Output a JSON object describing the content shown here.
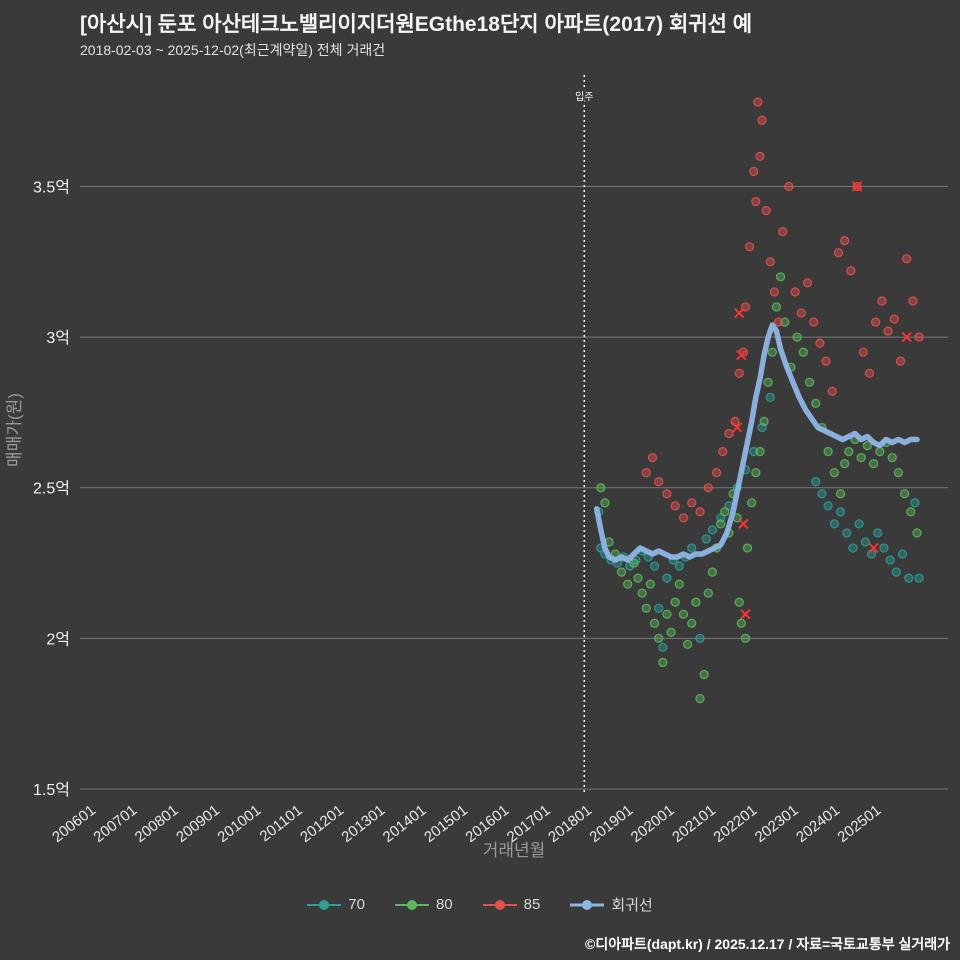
{
  "title": "[아산시] 둔포 아산테크노밸리이지더원EGthe18단지 아파트(2017) 회귀선 예",
  "subtitle": "2018-02-03 ~ 2025-12-02(최근계약일) 전체 거래건",
  "footer": "©디아파트(dapt.kr) / 2025.12.17 / 자료=국토교통부 실거래가",
  "colors": {
    "background": "#3a3a3a",
    "gridline": "#8c8c8c",
    "tick_label": "#e8e8e8",
    "axis_title": "#9a9a9a",
    "annotation_line": "#ffffff",
    "series_70": "#2e9e96",
    "series_80": "#5cb85c",
    "series_85": "#e2514f",
    "series_x": "#ff3333",
    "regression": "#8fb5e6"
  },
  "chart_data": {
    "type": "scatter",
    "title": "[아산시] 둔포 아산테크노밸리이지더원EGthe18단지 아파트(2017) 회귀선 예",
    "xlabel": "거래년월",
    "ylabel": "매매가(원)",
    "xlim": [
      2005.6,
      2026.6
    ],
    "ylim": [
      1.48,
      3.87
    ],
    "grid": "horizontal",
    "legend_position": "bottom-center",
    "x_ticks": [
      {
        "label": "200601",
        "x": 2006
      },
      {
        "label": "200701",
        "x": 2007
      },
      {
        "label": "200801",
        "x": 2008
      },
      {
        "label": "200901",
        "x": 2009
      },
      {
        "label": "201001",
        "x": 2010
      },
      {
        "label": "201101",
        "x": 2011
      },
      {
        "label": "201201",
        "x": 2012
      },
      {
        "label": "201301",
        "x": 2013
      },
      {
        "label": "201401",
        "x": 2014
      },
      {
        "label": "201501",
        "x": 2015
      },
      {
        "label": "201601",
        "x": 2016
      },
      {
        "label": "201701",
        "x": 2017
      },
      {
        "label": "201801",
        "x": 2018
      },
      {
        "label": "201901",
        "x": 2019
      },
      {
        "label": "202001",
        "x": 2020
      },
      {
        "label": "202101",
        "x": 2021
      },
      {
        "label": "202201",
        "x": 2022
      },
      {
        "label": "202301",
        "x": 2023
      },
      {
        "label": "202401",
        "x": 2024
      },
      {
        "label": "202501",
        "x": 2025
      }
    ],
    "y_ticks": [
      {
        "label": "1.5억",
        "value": 1.5
      },
      {
        "label": "2억",
        "value": 2.0
      },
      {
        "label": "2.5억",
        "value": 2.5
      },
      {
        "label": "3억",
        "value": 3.0
      },
      {
        "label": "3.5억",
        "value": 3.5
      }
    ],
    "annotation": {
      "label": "입주",
      "x": 2017.8
    },
    "series": [
      {
        "name": "70",
        "color": "#2e9e96",
        "marker": "circle",
        "points": [
          [
            2018.15,
            2.42
          ],
          [
            2018.2,
            2.3
          ],
          [
            2018.3,
            2.28
          ],
          [
            2018.45,
            2.26
          ],
          [
            2018.6,
            2.25
          ],
          [
            2018.75,
            2.27
          ],
          [
            2018.9,
            2.24
          ],
          [
            2019.05,
            2.26
          ],
          [
            2019.2,
            2.29
          ],
          [
            2019.35,
            2.27
          ],
          [
            2019.5,
            2.24
          ],
          [
            2019.6,
            2.1
          ],
          [
            2019.7,
            1.97
          ],
          [
            2019.8,
            2.2
          ],
          [
            2019.95,
            2.26
          ],
          [
            2020.1,
            2.24
          ],
          [
            2020.25,
            2.27
          ],
          [
            2020.4,
            2.3
          ],
          [
            2020.6,
            2.0
          ],
          [
            2020.75,
            2.33
          ],
          [
            2020.9,
            2.36
          ],
          [
            2021.1,
            2.4
          ],
          [
            2021.3,
            2.44
          ],
          [
            2021.5,
            2.5
          ],
          [
            2021.7,
            2.56
          ],
          [
            2021.9,
            2.62
          ],
          [
            2022.1,
            2.7
          ],
          [
            2022.3,
            2.8
          ],
          [
            2023.4,
            2.52
          ],
          [
            2023.55,
            2.48
          ],
          [
            2023.7,
            2.44
          ],
          [
            2023.85,
            2.38
          ],
          [
            2024.0,
            2.42
          ],
          [
            2024.15,
            2.35
          ],
          [
            2024.3,
            2.3
          ],
          [
            2024.45,
            2.38
          ],
          [
            2024.6,
            2.32
          ],
          [
            2024.75,
            2.28
          ],
          [
            2024.9,
            2.35
          ],
          [
            2025.05,
            2.3
          ],
          [
            2025.2,
            2.26
          ],
          [
            2025.35,
            2.22
          ],
          [
            2025.5,
            2.28
          ],
          [
            2025.65,
            2.2
          ],
          [
            2025.8,
            2.45
          ],
          [
            2025.9,
            2.2
          ]
        ]
      },
      {
        "name": "80",
        "color": "#5cb85c",
        "marker": "circle",
        "points": [
          [
            2018.2,
            2.5
          ],
          [
            2018.3,
            2.45
          ],
          [
            2018.4,
            2.32
          ],
          [
            2018.55,
            2.28
          ],
          [
            2018.7,
            2.22
          ],
          [
            2018.85,
            2.18
          ],
          [
            2019.0,
            2.25
          ],
          [
            2019.1,
            2.2
          ],
          [
            2019.2,
            2.15
          ],
          [
            2019.3,
            2.1
          ],
          [
            2019.4,
            2.18
          ],
          [
            2019.5,
            2.05
          ],
          [
            2019.6,
            2.0
          ],
          [
            2019.7,
            1.92
          ],
          [
            2019.8,
            2.08
          ],
          [
            2019.9,
            2.02
          ],
          [
            2020.0,
            2.12
          ],
          [
            2020.1,
            2.18
          ],
          [
            2020.2,
            2.08
          ],
          [
            2020.3,
            1.98
          ],
          [
            2020.4,
            2.05
          ],
          [
            2020.5,
            2.12
          ],
          [
            2020.6,
            1.8
          ],
          [
            2020.7,
            1.88
          ],
          [
            2020.8,
            2.15
          ],
          [
            2020.9,
            2.22
          ],
          [
            2021.0,
            2.3
          ],
          [
            2021.1,
            2.38
          ],
          [
            2021.2,
            2.42
          ],
          [
            2021.3,
            2.35
          ],
          [
            2021.4,
            2.48
          ],
          [
            2021.5,
            2.4
          ],
          [
            2021.55,
            2.12
          ],
          [
            2021.6,
            2.05
          ],
          [
            2021.7,
            2.0
          ],
          [
            2021.75,
            2.3
          ],
          [
            2021.85,
            2.45
          ],
          [
            2021.95,
            2.55
          ],
          [
            2022.05,
            2.62
          ],
          [
            2022.15,
            2.72
          ],
          [
            2022.25,
            2.85
          ],
          [
            2022.35,
            2.95
          ],
          [
            2022.45,
            3.1
          ],
          [
            2022.55,
            3.2
          ],
          [
            2022.65,
            3.05
          ],
          [
            2022.8,
            2.9
          ],
          [
            2022.95,
            3.0
          ],
          [
            2023.1,
            2.95
          ],
          [
            2023.25,
            2.85
          ],
          [
            2023.4,
            2.78
          ],
          [
            2023.55,
            2.7
          ],
          [
            2023.7,
            2.62
          ],
          [
            2023.85,
            2.55
          ],
          [
            2024.0,
            2.48
          ],
          [
            2024.1,
            2.58
          ],
          [
            2024.2,
            2.62
          ],
          [
            2024.35,
            2.66
          ],
          [
            2024.5,
            2.6
          ],
          [
            2024.65,
            2.64
          ],
          [
            2024.8,
            2.58
          ],
          [
            2024.95,
            2.62
          ],
          [
            2025.1,
            2.65
          ],
          [
            2025.25,
            2.6
          ],
          [
            2025.4,
            2.55
          ],
          [
            2025.55,
            2.48
          ],
          [
            2025.7,
            2.42
          ],
          [
            2025.85,
            2.35
          ]
        ]
      },
      {
        "name": "85",
        "color": "#e2514f",
        "marker": "circle",
        "points": [
          [
            2019.3,
            2.55
          ],
          [
            2019.45,
            2.6
          ],
          [
            2019.6,
            2.52
          ],
          [
            2019.8,
            2.48
          ],
          [
            2020.0,
            2.44
          ],
          [
            2020.2,
            2.4
          ],
          [
            2020.4,
            2.45
          ],
          [
            2020.6,
            2.42
          ],
          [
            2020.8,
            2.5
          ],
          [
            2021.0,
            2.55
          ],
          [
            2021.15,
            2.62
          ],
          [
            2021.3,
            2.68
          ],
          [
            2021.45,
            2.72
          ],
          [
            2021.55,
            2.88
          ],
          [
            2021.65,
            2.95
          ],
          [
            2021.7,
            3.1
          ],
          [
            2021.8,
            3.3
          ],
          [
            2021.9,
            3.55
          ],
          [
            2021.95,
            3.45
          ],
          [
            2022.0,
            3.78
          ],
          [
            2022.05,
            3.6
          ],
          [
            2022.1,
            3.72
          ],
          [
            2022.2,
            3.42
          ],
          [
            2022.3,
            3.25
          ],
          [
            2022.4,
            3.15
          ],
          [
            2022.5,
            3.05
          ],
          [
            2022.6,
            3.35
          ],
          [
            2022.75,
            3.5
          ],
          [
            2022.9,
            3.15
          ],
          [
            2023.05,
            3.08
          ],
          [
            2023.2,
            3.18
          ],
          [
            2023.35,
            3.05
          ],
          [
            2023.5,
            2.98
          ],
          [
            2023.65,
            2.92
          ],
          [
            2023.8,
            2.82
          ],
          [
            2023.95,
            3.28
          ],
          [
            2024.1,
            3.32
          ],
          [
            2024.25,
            3.22
          ],
          [
            2024.4,
            3.5
          ],
          [
            2024.55,
            2.95
          ],
          [
            2024.7,
            2.88
          ],
          [
            2024.85,
            3.05
          ],
          [
            2025.0,
            3.12
          ],
          [
            2025.15,
            3.02
          ],
          [
            2025.3,
            3.06
          ],
          [
            2025.45,
            2.92
          ],
          [
            2025.6,
            3.26
          ],
          [
            2025.75,
            3.12
          ],
          [
            2025.9,
            3.0
          ]
        ]
      },
      {
        "name": "85-cancelled",
        "color": "#ff3333",
        "marker": "x",
        "in_legend": false,
        "points": [
          [
            2021.55,
            3.08
          ],
          [
            2021.6,
            2.94
          ],
          [
            2021.5,
            2.7
          ],
          [
            2021.65,
            2.38
          ],
          [
            2021.7,
            2.08
          ],
          [
            2024.4,
            3.5
          ],
          [
            2024.8,
            2.3
          ],
          [
            2025.6,
            3.0
          ]
        ]
      }
    ],
    "regression": {
      "name": "회귀선",
      "color": "#8fb5e6",
      "points": [
        [
          2018.1,
          2.43
        ],
        [
          2018.2,
          2.36
        ],
        [
          2018.3,
          2.3
        ],
        [
          2018.4,
          2.27
        ],
        [
          2018.55,
          2.26
        ],
        [
          2018.7,
          2.27
        ],
        [
          2018.85,
          2.26
        ],
        [
          2019.0,
          2.28
        ],
        [
          2019.15,
          2.3
        ],
        [
          2019.3,
          2.29
        ],
        [
          2019.45,
          2.28
        ],
        [
          2019.6,
          2.29
        ],
        [
          2019.75,
          2.28
        ],
        [
          2019.9,
          2.27
        ],
        [
          2020.05,
          2.27
        ],
        [
          2020.2,
          2.28
        ],
        [
          2020.35,
          2.27
        ],
        [
          2020.5,
          2.28
        ],
        [
          2020.65,
          2.28
        ],
        [
          2020.8,
          2.29
        ],
        [
          2020.95,
          2.3
        ],
        [
          2021.1,
          2.31
        ],
        [
          2021.25,
          2.35
        ],
        [
          2021.4,
          2.42
        ],
        [
          2021.55,
          2.52
        ],
        [
          2021.7,
          2.62
        ],
        [
          2021.85,
          2.72
        ],
        [
          2021.95,
          2.8
        ],
        [
          2022.05,
          2.86
        ],
        [
          2022.15,
          2.94
        ],
        [
          2022.25,
          3.0
        ],
        [
          2022.35,
          3.04
        ],
        [
          2022.45,
          3.02
        ],
        [
          2022.55,
          2.96
        ],
        [
          2022.7,
          2.9
        ],
        [
          2022.85,
          2.85
        ],
        [
          2023.0,
          2.8
        ],
        [
          2023.15,
          2.76
        ],
        [
          2023.3,
          2.73
        ],
        [
          2023.45,
          2.7
        ],
        [
          2023.6,
          2.69
        ],
        [
          2023.75,
          2.68
        ],
        [
          2023.9,
          2.67
        ],
        [
          2024.05,
          2.66
        ],
        [
          2024.2,
          2.67
        ],
        [
          2024.35,
          2.68
        ],
        [
          2024.5,
          2.66
        ],
        [
          2024.65,
          2.67
        ],
        [
          2024.8,
          2.65
        ],
        [
          2024.95,
          2.64
        ],
        [
          2025.1,
          2.66
        ],
        [
          2025.25,
          2.65
        ],
        [
          2025.4,
          2.66
        ],
        [
          2025.55,
          2.65
        ],
        [
          2025.7,
          2.66
        ],
        [
          2025.85,
          2.66
        ]
      ]
    },
    "legend_items": [
      {
        "label": "70",
        "color": "#2e9e96",
        "line_width": 2
      },
      {
        "label": "80",
        "color": "#5cb85c",
        "line_width": 2
      },
      {
        "label": "85",
        "color": "#e2514f",
        "line_width": 2
      },
      {
        "label": "회귀선",
        "color": "#8fb5e6",
        "line_width": 3
      }
    ]
  }
}
